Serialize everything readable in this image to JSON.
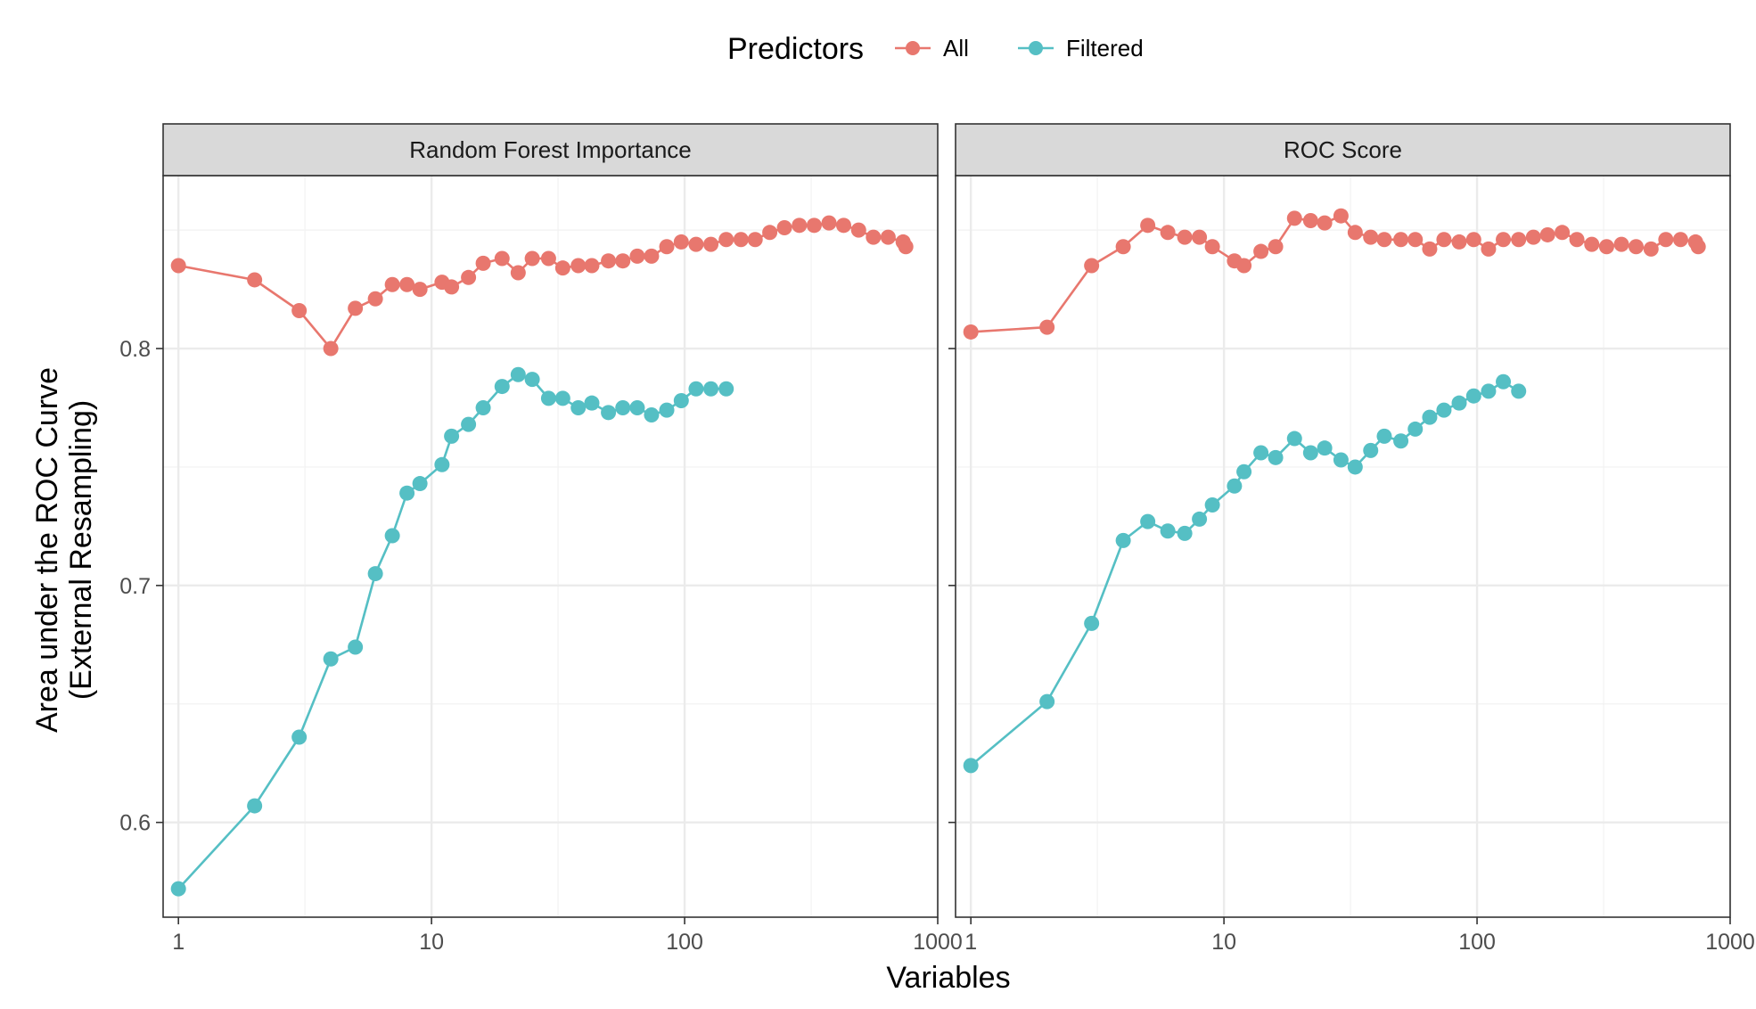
{
  "chart_data": {
    "type": "line",
    "xscale": "log10",
    "xlim": [
      0.87,
      1000
    ],
    "ylim": [
      0.56,
      0.873
    ],
    "xticks": [
      1,
      10,
      100,
      1000
    ],
    "xtick_labels": [
      "1",
      "10",
      "100",
      "1000"
    ],
    "yticks": [
      0.6,
      0.7,
      0.8
    ],
    "ytick_labels": [
      "0.6",
      "0.7",
      "0.8"
    ],
    "xlabel": "Variables",
    "ylabel": [
      "Area under the ROC Curve",
      "(External Resampling)"
    ],
    "legend": {
      "title": "Predictors",
      "position": "top",
      "entries": [
        "All",
        "Filtered"
      ]
    },
    "series_colors": {
      "All": "#E8776E",
      "Filtered": "#55BFC4"
    },
    "grid": true,
    "panels": [
      {
        "strip": "Random Forest Importance",
        "series": [
          {
            "name": "All",
            "x": [
              1,
              2,
              3,
              4,
              5,
              6,
              7,
              8,
              9,
              11,
              12,
              14,
              16,
              19,
              22,
              25,
              29,
              33,
              38,
              43,
              50,
              57,
              65,
              74,
              85,
              97,
              111,
              127,
              146,
              167,
              190,
              217,
              248,
              284,
              325,
              372,
              425,
              487,
              557,
              637,
              730,
              748
            ],
            "y": [
              0.835,
              0.829,
              0.816,
              0.8,
              0.817,
              0.821,
              0.827,
              0.827,
              0.825,
              0.828,
              0.826,
              0.83,
              0.836,
              0.838,
              0.832,
              0.838,
              0.838,
              0.834,
              0.835,
              0.835,
              0.837,
              0.837,
              0.839,
              0.839,
              0.843,
              0.845,
              0.844,
              0.844,
              0.846,
              0.846,
              0.846,
              0.849,
              0.851,
              0.852,
              0.852,
              0.853,
              0.852,
              0.85,
              0.847,
              0.847,
              0.845,
              0.843
            ]
          },
          {
            "name": "Filtered",
            "x": [
              1,
              2,
              3,
              4,
              5,
              6,
              7,
              8,
              9,
              11,
              12,
              14,
              16,
              19,
              22,
              25,
              29,
              33,
              38,
              43,
              50,
              57,
              65,
              74,
              85,
              97,
              111,
              127,
              146
            ],
            "y": [
              0.572,
              0.607,
              0.636,
              0.669,
              0.674,
              0.705,
              0.721,
              0.739,
              0.743,
              0.751,
              0.763,
              0.768,
              0.775,
              0.784,
              0.789,
              0.787,
              0.779,
              0.779,
              0.775,
              0.777,
              0.773,
              0.775,
              0.775,
              0.772,
              0.774,
              0.778,
              0.783,
              0.783,
              0.783
            ]
          }
        ]
      },
      {
        "strip": "ROC Score",
        "series": [
          {
            "name": "All",
            "x": [
              1,
              2,
              3,
              4,
              5,
              6,
              7,
              8,
              9,
              11,
              12,
              14,
              16,
              19,
              22,
              25,
              29,
              33,
              38,
              43,
              50,
              57,
              65,
              74,
              85,
              97,
              111,
              127,
              146,
              167,
              190,
              217,
              248,
              284,
              325,
              372,
              425,
              487,
              557,
              637,
              730,
              748
            ],
            "y": [
              0.807,
              0.809,
              0.835,
              0.843,
              0.852,
              0.849,
              0.847,
              0.847,
              0.843,
              0.837,
              0.835,
              0.841,
              0.843,
              0.855,
              0.854,
              0.853,
              0.856,
              0.849,
              0.847,
              0.846,
              0.846,
              0.846,
              0.842,
              0.846,
              0.845,
              0.846,
              0.842,
              0.846,
              0.846,
              0.847,
              0.848,
              0.849,
              0.846,
              0.844,
              0.843,
              0.844,
              0.843,
              0.842,
              0.846,
              0.846,
              0.845,
              0.843
            ]
          },
          {
            "name": "Filtered",
            "x": [
              1,
              2,
              3,
              4,
              5,
              6,
              7,
              8,
              9,
              11,
              12,
              14,
              16,
              19,
              22,
              25,
              29,
              33,
              38,
              43,
              50,
              57,
              65,
              74,
              85,
              97,
              111,
              127,
              146
            ],
            "y": [
              0.624,
              0.651,
              0.684,
              0.719,
              0.727,
              0.723,
              0.722,
              0.728,
              0.734,
              0.742,
              0.748,
              0.756,
              0.754,
              0.762,
              0.756,
              0.758,
              0.753,
              0.75,
              0.757,
              0.763,
              0.761,
              0.766,
              0.771,
              0.774,
              0.777,
              0.78,
              0.782,
              0.786,
              0.782
            ]
          }
        ]
      }
    ]
  }
}
